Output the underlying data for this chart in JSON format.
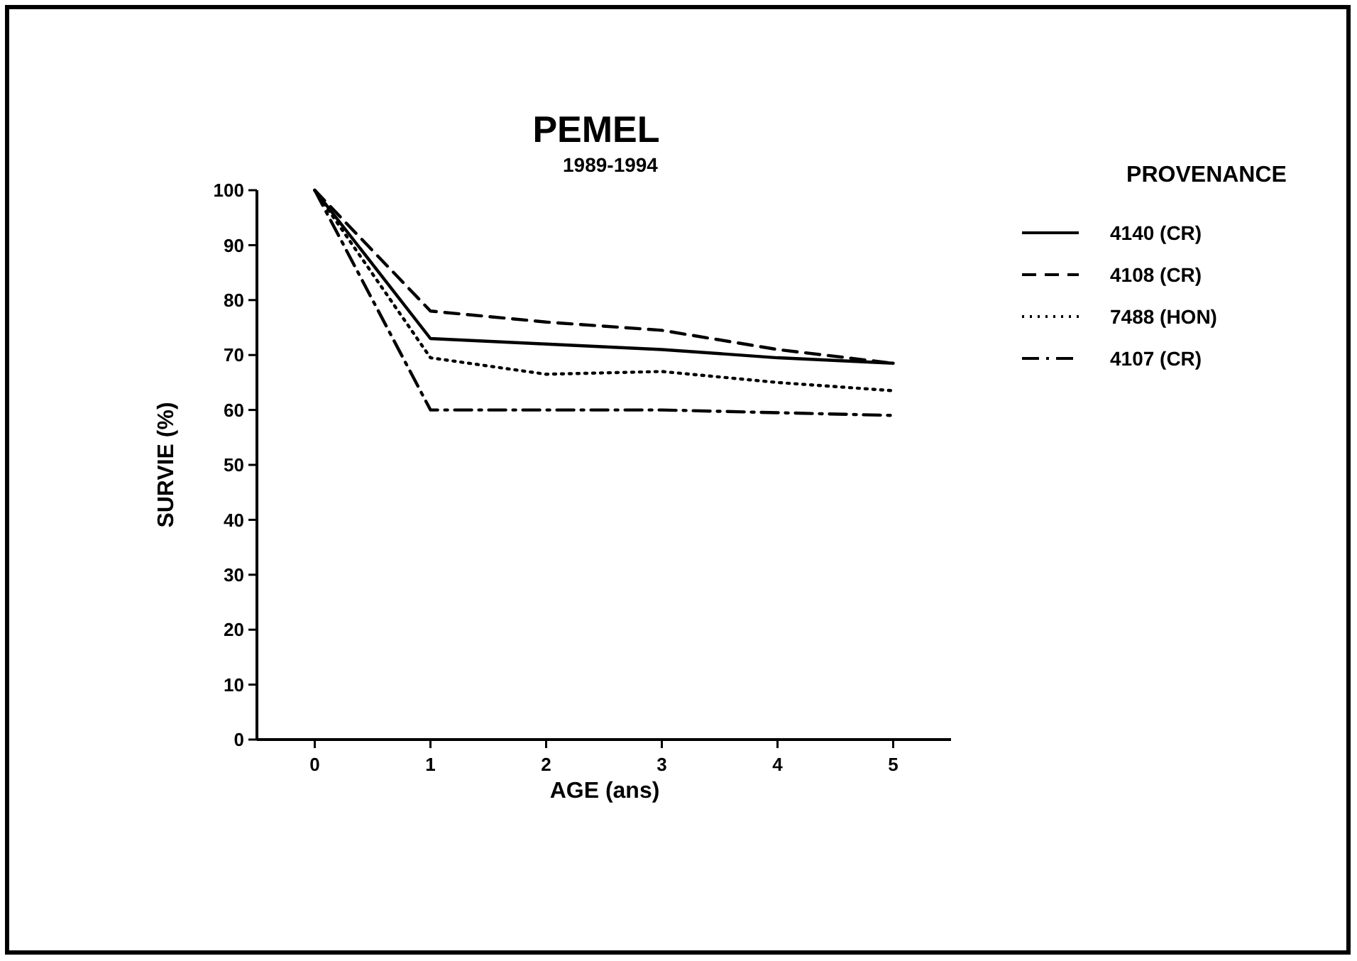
{
  "chart_data": {
    "type": "line",
    "title": "PEMEL",
    "subtitle": "1989-1994",
    "xlabel": "AGE (ans)",
    "ylabel": "SURVIE (%)",
    "legend_title": "PROVENANCE",
    "legend": "right",
    "grid": false,
    "marker": "none",
    "x": [
      0,
      1,
      2,
      3,
      4,
      5
    ],
    "xlim": [
      -0.5,
      5.5
    ],
    "xticks": [
      0,
      1,
      2,
      3,
      4,
      5
    ],
    "ylim": [
      0,
      100
    ],
    "yticks": [
      0,
      10,
      20,
      30,
      40,
      50,
      60,
      70,
      80,
      90,
      100
    ],
    "series": [
      {
        "name": "4140 (CR)",
        "color": "#000000",
        "line_style": "solid",
        "values": [
          100,
          73,
          72,
          71,
          69.5,
          68.5
        ]
      },
      {
        "name": "4108 (CR)",
        "color": "#000000",
        "line_style": "dashed",
        "values": [
          100,
          78,
          76,
          74.5,
          71,
          68.5
        ]
      },
      {
        "name": "7488 (HON)",
        "color": "#000000",
        "line_style": "dotted",
        "values": [
          100,
          69.5,
          66.5,
          67,
          65,
          63.5
        ]
      },
      {
        "name": "4107 (CR)",
        "color": "#000000",
        "line_style": "dashdot",
        "values": [
          100,
          60,
          60,
          60,
          59.5,
          59
        ]
      }
    ]
  }
}
